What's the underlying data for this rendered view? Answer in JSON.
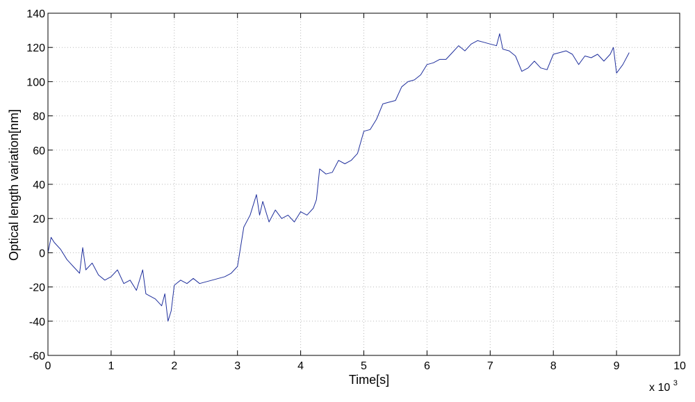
{
  "chart_data": {
    "type": "line",
    "xlabel": "Time[s]",
    "ylabel": "Optical length variation[nm]",
    "x_multiplier_label": "x 10",
    "x_multiplier_exponent": "3",
    "xlim": [
      0,
      10
    ],
    "ylim": [
      -60,
      140
    ],
    "x_ticks": [
      0,
      1,
      2,
      3,
      4,
      5,
      6,
      7,
      8,
      9,
      10
    ],
    "x_tick_labels": [
      "0",
      "1",
      "2",
      "3",
      "4",
      "5",
      "6",
      "7",
      "8",
      "9",
      "10"
    ],
    "y_ticks": [
      -60,
      -40,
      -20,
      0,
      20,
      40,
      60,
      80,
      100,
      120,
      140
    ],
    "y_tick_labels": [
      "-60",
      "-40",
      "-20",
      "0",
      "20",
      "40",
      "60",
      "80",
      "100",
      "120",
      "140"
    ],
    "grid": true,
    "line_color": "#1f2f9c",
    "series": [
      {
        "x": [
          0,
          0.05,
          0.1,
          0.2,
          0.3,
          0.4,
          0.5,
          0.55,
          0.6,
          0.7,
          0.8,
          0.9,
          1.0,
          1.1,
          1.2,
          1.3,
          1.4,
          1.5,
          1.55,
          1.6,
          1.7,
          1.8,
          1.85,
          1.9,
          1.95,
          2.0,
          2.1,
          2.2,
          2.3,
          2.4,
          2.5,
          2.6,
          2.7,
          2.8,
          2.9,
          3.0,
          3.1,
          3.2,
          3.3,
          3.35,
          3.4,
          3.5,
          3.6,
          3.7,
          3.8,
          3.9,
          4.0,
          4.1,
          4.2,
          4.25,
          4.3,
          4.4,
          4.5,
          4.6,
          4.7,
          4.8,
          4.9,
          5.0,
          5.1,
          5.2,
          5.3,
          5.4,
          5.5,
          5.6,
          5.7,
          5.8,
          5.9,
          6.0,
          6.1,
          6.2,
          6.3,
          6.4,
          6.5,
          6.6,
          6.7,
          6.8,
          6.9,
          7.0,
          7.1,
          7.15,
          7.2,
          7.3,
          7.4,
          7.5,
          7.6,
          7.7,
          7.8,
          7.9,
          8.0,
          8.1,
          8.2,
          8.3,
          8.4,
          8.5,
          8.6,
          8.7,
          8.8,
          8.9,
          8.95,
          9.0,
          9.1,
          9.2
        ],
        "y": [
          0,
          9,
          6,
          2,
          -4,
          -8,
          -12,
          3,
          -10,
          -6,
          -13,
          -16,
          -14,
          -10,
          -18,
          -16,
          -22,
          -10,
          -24,
          -25,
          -27,
          -31,
          -24,
          -40,
          -34,
          -19,
          -16,
          -18,
          -15,
          -18,
          -17,
          -16,
          -15,
          -14,
          -12,
          -8,
          15,
          22,
          34,
          22,
          30,
          18,
          25,
          20,
          22,
          18,
          24,
          22,
          26,
          31,
          49,
          46,
          47,
          54,
          52,
          54,
          58,
          71,
          72,
          78,
          87,
          88,
          89,
          97,
          100,
          101,
          104,
          110,
          111,
          113,
          113,
          117,
          121,
          118,
          122,
          124,
          123,
          122,
          121,
          128,
          119,
          118,
          115,
          106,
          108,
          112,
          108,
          107,
          116,
          117,
          118,
          116,
          110,
          115,
          114,
          116,
          112,
          116,
          120,
          105,
          110,
          117
        ]
      }
    ]
  }
}
